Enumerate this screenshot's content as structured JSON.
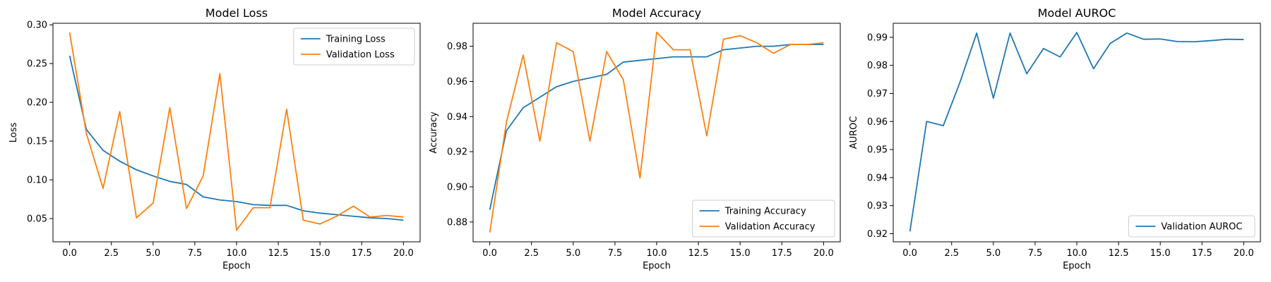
{
  "chart_data": [
    {
      "type": "line",
      "title": "Model Loss",
      "xlabel": "Epoch",
      "ylabel": "Loss",
      "xlim": [
        -1,
        21
      ],
      "ylim": [
        0.02,
        0.302
      ],
      "xticks": [
        "0.0",
        "2.5",
        "5.0",
        "7.5",
        "10.0",
        "12.5",
        "15.0",
        "17.5",
        "20.0"
      ],
      "yticks": [
        "0.05",
        "0.10",
        "0.15",
        "0.20",
        "0.25",
        "0.30"
      ],
      "legend_position": "top-right",
      "x": [
        0,
        1,
        2,
        3,
        4,
        5,
        6,
        7,
        8,
        9,
        10,
        11,
        12,
        13,
        14,
        15,
        16,
        17,
        18,
        19,
        20
      ],
      "series": [
        {
          "name": "Training Loss",
          "color": "#1f77b4",
          "values": [
            0.26,
            0.165,
            0.138,
            0.124,
            0.113,
            0.105,
            0.098,
            0.094,
            0.078,
            0.074,
            0.072,
            0.068,
            0.067,
            0.067,
            0.06,
            0.057,
            0.055,
            0.053,
            0.051,
            0.05,
            0.048
          ]
        },
        {
          "name": "Validation Loss",
          "color": "#ff7f0e",
          "values": [
            0.29,
            0.16,
            0.089,
            0.188,
            0.051,
            0.07,
            0.193,
            0.063,
            0.105,
            0.237,
            0.035,
            0.064,
            0.064,
            0.191,
            0.048,
            0.043,
            0.053,
            0.066,
            0.052,
            0.054,
            0.052
          ]
        }
      ]
    },
    {
      "type": "line",
      "title": "Model Accuracy",
      "xlabel": "Epoch",
      "ylabel": "Accuracy",
      "xlim": [
        -1,
        21
      ],
      "ylim": [
        0.8687,
        0.9931
      ],
      "xticks": [
        "0.0",
        "2.5",
        "5.0",
        "7.5",
        "10.0",
        "12.5",
        "15.0",
        "17.5",
        "20.0"
      ],
      "yticks": [
        "0.88",
        "0.90",
        "0.92",
        "0.94",
        "0.96",
        "0.98"
      ],
      "legend_position": "bottom-right",
      "x": [
        0,
        1,
        2,
        3,
        4,
        5,
        6,
        7,
        8,
        9,
        10,
        11,
        12,
        13,
        14,
        15,
        16,
        17,
        18,
        19,
        20
      ],
      "series": [
        {
          "name": "Training Accuracy",
          "color": "#1f77b4",
          "values": [
            0.887,
            0.932,
            0.945,
            0.951,
            0.957,
            0.96,
            0.962,
            0.964,
            0.971,
            0.972,
            0.973,
            0.974,
            0.974,
            0.974,
            0.978,
            0.979,
            0.98,
            0.98,
            0.981,
            0.981,
            0.981
          ]
        },
        {
          "name": "Validation Accuracy",
          "color": "#ff7f0e",
          "values": [
            0.874,
            0.937,
            0.975,
            0.926,
            0.982,
            0.977,
            0.926,
            0.977,
            0.961,
            0.905,
            0.988,
            0.978,
            0.978,
            0.929,
            0.984,
            0.986,
            0.982,
            0.976,
            0.981,
            0.981,
            0.982
          ]
        }
      ]
    },
    {
      "type": "line",
      "title": "Model AUROC",
      "xlabel": "Epoch",
      "ylabel": "AUROC",
      "xlim": [
        -1,
        21
      ],
      "ylim": [
        0.9171,
        0.995
      ],
      "xticks": [
        "0.0",
        "2.5",
        "5.0",
        "7.5",
        "10.0",
        "12.5",
        "15.0",
        "17.5",
        "20.0"
      ],
      "yticks": [
        "0.92",
        "0.93",
        "0.94",
        "0.95",
        "0.96",
        "0.97",
        "0.98",
        "0.99"
      ],
      "legend_position": "bottom-right",
      "x": [
        0,
        1,
        2,
        3,
        4,
        5,
        6,
        7,
        8,
        9,
        10,
        11,
        12,
        13,
        14,
        15,
        16,
        17,
        18,
        19,
        20
      ],
      "series": [
        {
          "name": "Validation AUROC",
          "color": "#1f77b4",
          "values": [
            0.9208,
            0.96,
            0.9585,
            0.974,
            0.9915,
            0.9683,
            0.9915,
            0.977,
            0.986,
            0.983,
            0.9917,
            0.9788,
            0.9878,
            0.9915,
            0.9893,
            0.9894,
            0.9885,
            0.9884,
            0.9888,
            0.9893,
            0.9892
          ]
        }
      ]
    }
  ]
}
